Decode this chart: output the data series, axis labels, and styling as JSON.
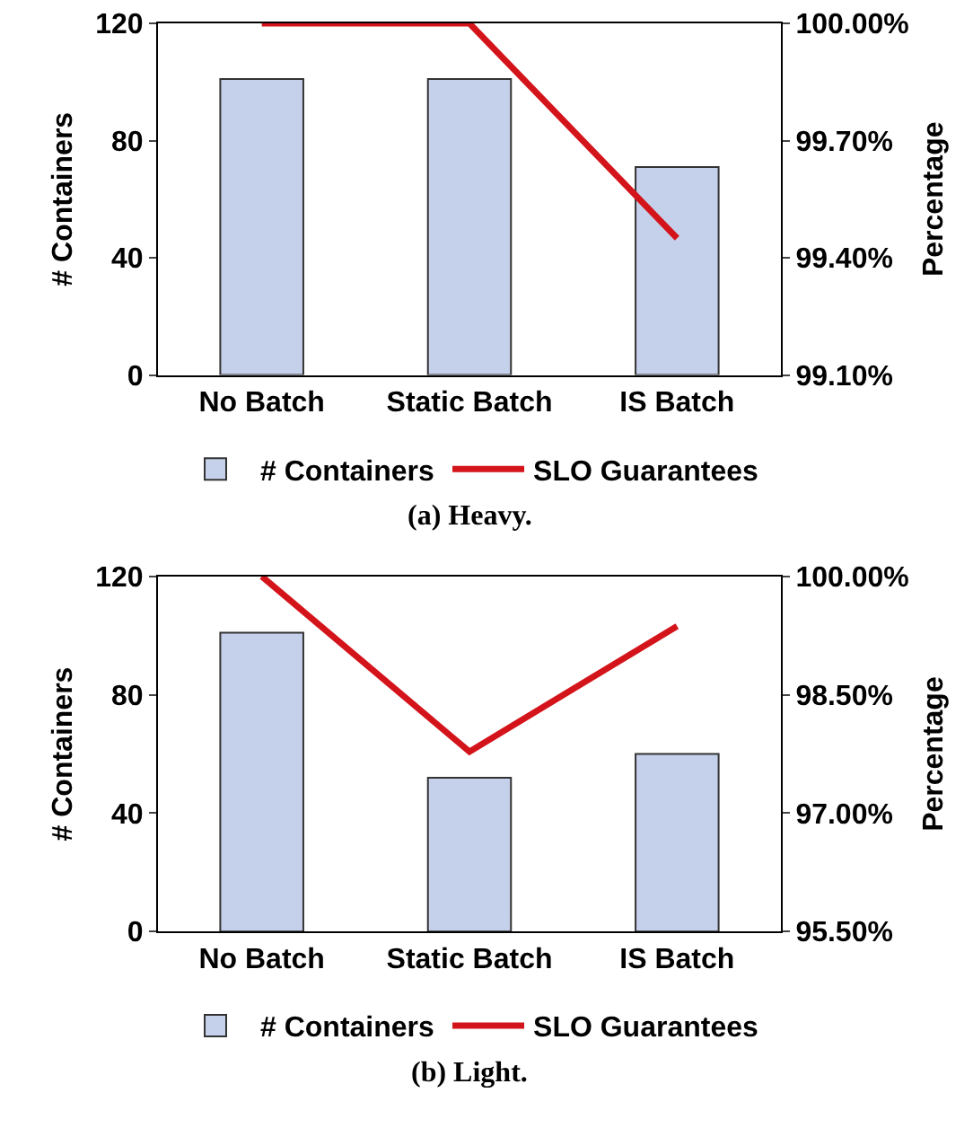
{
  "chart_data": [
    {
      "type": "bar",
      "title": "(a) Heavy.",
      "categories": [
        "No Batch",
        "Static Batch",
        "IS Batch"
      ],
      "ylabel": "# Containers",
      "y2label": "Percentage",
      "ylim": [
        0,
        120
      ],
      "yticks": [
        0,
        40,
        80,
        120
      ],
      "y2lim": [
        99.1,
        100.0
      ],
      "y2ticks": [
        {
          "value": 99.1,
          "label": "99.10%"
        },
        {
          "value": 99.4,
          "label": "99.40%"
        },
        {
          "value": 99.7,
          "label": "99.70%"
        },
        {
          "value": 100.0,
          "label": "100.00%"
        }
      ],
      "legend": "bottom",
      "series": [
        {
          "name": "# Containers",
          "color": "#c5d0ea",
          "values": [
            101,
            101,
            71
          ]
        },
        {
          "name": "SLO Guarantees",
          "type": "line",
          "axis": "y2",
          "color": "#d4141b",
          "values": [
            100.0,
            100.0,
            99.45
          ]
        }
      ]
    },
    {
      "type": "bar",
      "title": "(b) Light.",
      "categories": [
        "No Batch",
        "Static Batch",
        "IS Batch"
      ],
      "ylabel": "# Containers",
      "y2label": "Percentage",
      "ylim": [
        0,
        120
      ],
      "yticks": [
        0,
        40,
        80,
        120
      ],
      "y2lim": [
        95.5,
        100.0
      ],
      "y2ticks": [
        {
          "value": 95.5,
          "label": "95.50%"
        },
        {
          "value": 97.0,
          "label": "97.00%"
        },
        {
          "value": 98.5,
          "label": "98.50%"
        },
        {
          "value": 100.0,
          "label": "100.00%"
        }
      ],
      "legend": "bottom",
      "series": [
        {
          "name": "# Containers",
          "color": "#c5d0ea",
          "values": [
            101,
            52,
            60
          ]
        },
        {
          "name": "SLO Guarantees",
          "type": "line",
          "axis": "y2",
          "color": "#d4141b",
          "values": [
            100.0,
            97.78,
            99.37
          ]
        }
      ]
    }
  ]
}
